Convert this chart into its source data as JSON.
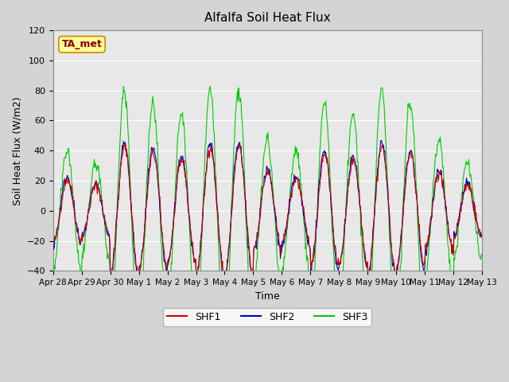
{
  "title": "Alfalfa Soil Heat Flux",
  "ylabel": "Soil Heat Flux (W/m2)",
  "xlabel": "Time",
  "ylim": [
    -40,
    120
  ],
  "yticks": [
    -40,
    -20,
    0,
    20,
    40,
    60,
    80,
    100,
    120
  ],
  "background_color": "#e8e8e8",
  "plot_bg_color": "#e8e8e8",
  "shf1_color": "#cc0000",
  "shf2_color": "#0000cc",
  "shf3_color": "#00cc00",
  "legend_labels": [
    "SHF1",
    "SHF2",
    "SHF3"
  ],
  "annotation_text": "TA_met",
  "annotation_bg": "#ffff99",
  "annotation_border": "#cc8800",
  "n_days": 15,
  "start_day": 0,
  "points_per_day": 48
}
